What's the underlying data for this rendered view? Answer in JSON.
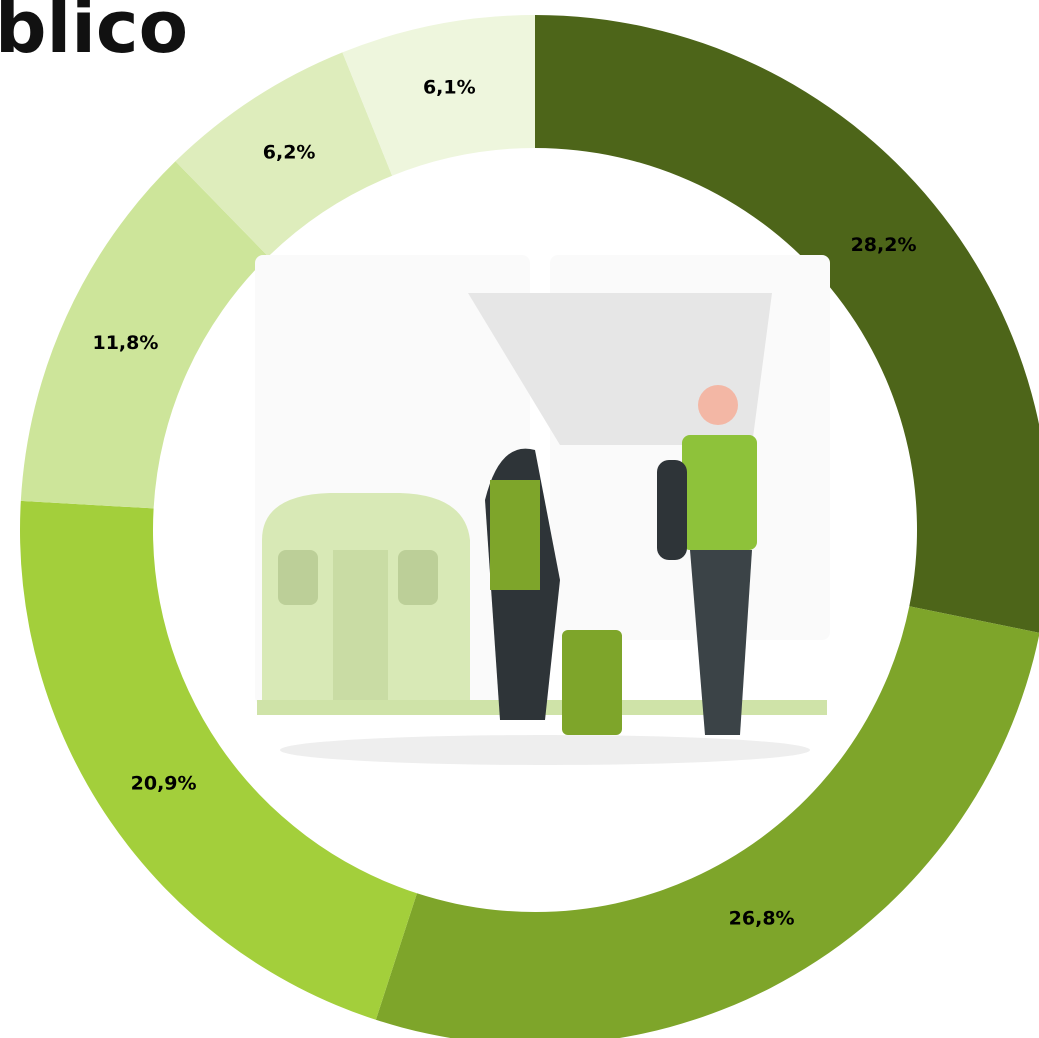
{
  "chart_data": {
    "type": "donut",
    "title": "blico",
    "values": [
      28.2,
      26.8,
      20.9,
      11.8,
      6.2,
      6.1
    ],
    "value_labels": [
      "28,2%",
      "26,8%",
      "20,9%",
      "11,8%",
      "6,2%",
      "6,1%"
    ],
    "colors": [
      "#4d6519",
      "#7ea52a",
      "#a3cf3b",
      "#cde59a",
      "#deedbc",
      "#eef6dd"
    ]
  }
}
